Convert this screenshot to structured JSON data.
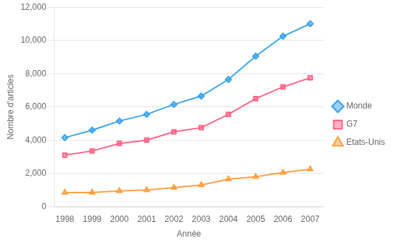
{
  "chart_data": {
    "type": "line",
    "x": [
      1998,
      1999,
      2000,
      2001,
      2002,
      2003,
      2004,
      2005,
      2006,
      2007
    ],
    "series": [
      {
        "name": "Monde",
        "marker": "diamond",
        "values": [
          4150,
          4600,
          5150,
          5550,
          6150,
          6650,
          7650,
          9050,
          10250,
          11000
        ]
      },
      {
        "name": "G7",
        "marker": "square",
        "values": [
          3100,
          3350,
          3800,
          4000,
          4500,
          4750,
          5550,
          6500,
          7200,
          7750
        ]
      },
      {
        "name": "Etats-Unis",
        "marker": "triangle",
        "values": [
          850,
          850,
          950,
          1000,
          1150,
          1300,
          1650,
          1800,
          2050,
          2250
        ]
      }
    ],
    "xlabel": "Année",
    "ylabel": "Nombre d'articles",
    "xlim": [
      1997.6,
      2007.5
    ],
    "xticks": [
      1998,
      1999,
      2000,
      2001,
      2002,
      2003,
      2004,
      2005,
      2006,
      2007
    ],
    "ylim": [
      0,
      12000
    ],
    "yticks": [
      0,
      {
        "value": 2000,
        "label": "2,000"
      },
      {
        "value": 4000,
        "label": "4,000"
      },
      {
        "value": 6000,
        "label": "6,000"
      },
      {
        "value": 8000,
        "label": "8,000"
      },
      {
        "value": 10000,
        "label": "10,000"
      },
      {
        "value": 12000,
        "label": "12,000"
      }
    ],
    "grid": "y",
    "legend": "right"
  }
}
